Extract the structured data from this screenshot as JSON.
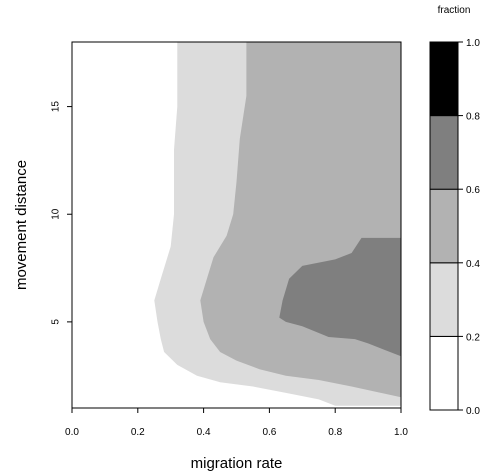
{
  "chart_data": {
    "type": "filled-contour",
    "xlabel": "migration rate",
    "ylabel": "movement distance",
    "xlim": [
      0.0,
      1.0
    ],
    "ylim": [
      1.0,
      18.0
    ],
    "x_ticks": [
      "0.0",
      "0.2",
      "0.4",
      "0.6",
      "0.8",
      "1.0"
    ],
    "y_ticks": [
      "5",
      "10",
      "15"
    ],
    "legend": {
      "title": "fraction",
      "ticks": [
        "0.0",
        "0.2",
        "0.4",
        "0.6",
        "0.8",
        "1.0"
      ],
      "placement": "right",
      "levels": [
        {
          "range": [
            0.0,
            0.2
          ],
          "color": "#ffffff"
        },
        {
          "range": [
            0.2,
            0.4
          ],
          "color": "#dcdcdc"
        },
        {
          "range": [
            0.4,
            0.6
          ],
          "color": "#b2b2b2"
        },
        {
          "range": [
            0.6,
            0.8
          ],
          "color": "#7f7f7f"
        },
        {
          "range": [
            0.8,
            1.0
          ],
          "color": "#000000"
        }
      ]
    },
    "regions": [
      {
        "level": 1,
        "boundary": [
          [
            0.32,
            18.0
          ],
          [
            0.32,
            15.0
          ],
          [
            0.31,
            13.0
          ],
          [
            0.31,
            10.0
          ],
          [
            0.3,
            8.5
          ],
          [
            0.27,
            7.0
          ],
          [
            0.25,
            6.0
          ],
          [
            0.26,
            5.0
          ],
          [
            0.27,
            4.2
          ],
          [
            0.28,
            3.6
          ],
          [
            0.32,
            3.0
          ],
          [
            0.38,
            2.5
          ],
          [
            0.45,
            2.2
          ],
          [
            0.55,
            2.0
          ],
          [
            0.65,
            1.7
          ],
          [
            0.75,
            1.4
          ],
          [
            0.8,
            1.1
          ],
          [
            1.0,
            1.1
          ],
          [
            1.0,
            18.0
          ]
        ]
      },
      {
        "level": 2,
        "boundary": [
          [
            0.53,
            18.0
          ],
          [
            0.53,
            15.5
          ],
          [
            0.51,
            13.5
          ],
          [
            0.5,
            11.5
          ],
          [
            0.49,
            10.0
          ],
          [
            0.47,
            9.0
          ],
          [
            0.43,
            8.0
          ],
          [
            0.41,
            7.0
          ],
          [
            0.39,
            6.0
          ],
          [
            0.4,
            5.0
          ],
          [
            0.42,
            4.2
          ],
          [
            0.45,
            3.6
          ],
          [
            0.5,
            3.2
          ],
          [
            0.57,
            2.8
          ],
          [
            0.65,
            2.5
          ],
          [
            0.75,
            2.3
          ],
          [
            0.85,
            2.0
          ],
          [
            1.0,
            1.5
          ],
          [
            1.0,
            18.0
          ]
        ]
      },
      {
        "level": 2,
        "boundary": [
          [
            0.56,
            18.0
          ],
          [
            0.56,
            16.5
          ],
          [
            0.55,
            15.0
          ],
          [
            0.57,
            14.0
          ],
          [
            0.56,
            12.5
          ],
          [
            0.54,
            10.5
          ],
          [
            0.52,
            9.0
          ],
          [
            0.51,
            7.5
          ],
          [
            0.5,
            6.0
          ],
          [
            0.51,
            5.0
          ],
          [
            0.54,
            4.2
          ],
          [
            0.58,
            3.5
          ],
          [
            0.65,
            3.1
          ],
          [
            0.72,
            2.8
          ],
          [
            0.8,
            2.6
          ],
          [
            0.9,
            2.4
          ],
          [
            1.0,
            2.3
          ],
          [
            1.0,
            18.0
          ]
        ]
      },
      {
        "level": 3,
        "boundary": [
          [
            0.66,
            7.0
          ],
          [
            0.7,
            7.6
          ],
          [
            0.8,
            7.9
          ],
          [
            0.85,
            8.2
          ],
          [
            0.88,
            8.9
          ],
          [
            1.0,
            8.9
          ],
          [
            1.0,
            3.4
          ],
          [
            0.9,
            4.0
          ],
          [
            0.86,
            4.2
          ],
          [
            0.78,
            4.3
          ],
          [
            0.7,
            4.8
          ],
          [
            0.65,
            5.0
          ],
          [
            0.63,
            5.2
          ],
          [
            0.64,
            6.0
          ]
        ]
      }
    ]
  }
}
